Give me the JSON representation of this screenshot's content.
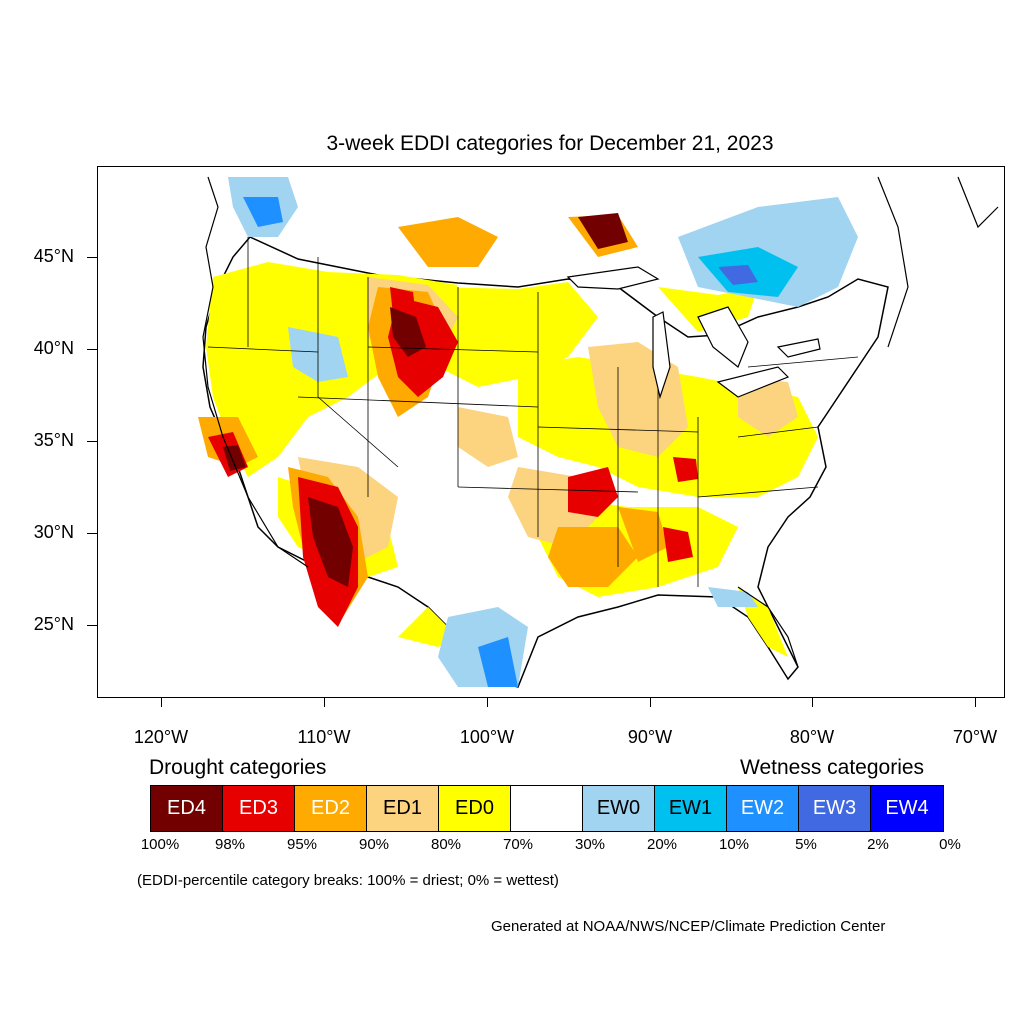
{
  "title": "3-week EDDI categories for December 21, 2023",
  "longitude_labels": [
    "120°W",
    "110°W",
    "100°W",
    "90°W",
    "80°W",
    "70°W"
  ],
  "latitude_labels": [
    "45°N",
    "40°N",
    "35°N",
    "30°N",
    "25°N"
  ],
  "legend": {
    "drought_heading": "Drought categories",
    "wetness_heading": "Wetness categories",
    "categories": [
      {
        "label": "ED4",
        "color": "#730000",
        "text_color": "#ffffff"
      },
      {
        "label": "ED3",
        "color": "#e60000",
        "text_color": "#ffffff"
      },
      {
        "label": "ED2",
        "color": "#ffaa00",
        "text_color": "#ffffff"
      },
      {
        "label": "ED1",
        "color": "#fcd37f",
        "text_color": "#000000"
      },
      {
        "label": "ED0",
        "color": "#ffff00",
        "text_color": "#000000"
      },
      {
        "label": "",
        "color": "#ffffff",
        "text_color": "#000000"
      },
      {
        "label": "EW0",
        "color": "#a0d4f0",
        "text_color": "#000000"
      },
      {
        "label": "EW1",
        "color": "#00c0f0",
        "text_color": "#000000"
      },
      {
        "label": "EW2",
        "color": "#1e90ff",
        "text_color": "#ffffff"
      },
      {
        "label": "EW3",
        "color": "#4169e1",
        "text_color": "#ffffff"
      },
      {
        "label": "EW4",
        "color": "#0000ff",
        "text_color": "#ffffff"
      }
    ],
    "breaks": [
      "100%",
      "98%",
      "95%",
      "90%",
      "80%",
      "70%",
      "30%",
      "20%",
      "10%",
      "5%",
      "2%",
      "0%"
    ]
  },
  "note": "(EDDI-percentile category breaks: 100% = driest; 0% = wettest)",
  "credit": "Generated at NOAA/NWS/NCEP/Climate Prediction Center"
}
